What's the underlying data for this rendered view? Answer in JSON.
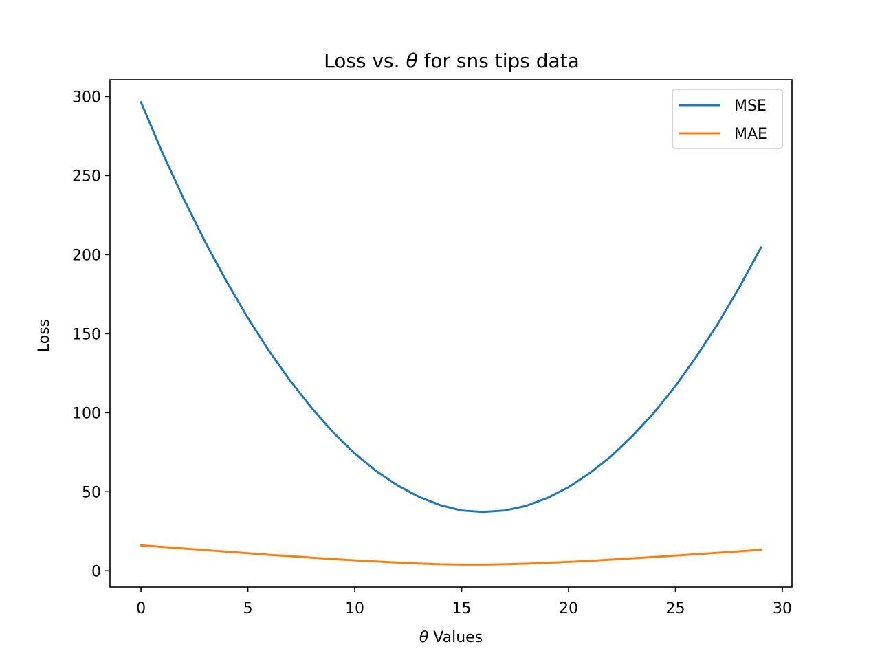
{
  "chart_data": {
    "type": "line",
    "title_main": "Loss vs. ",
    "title_symbol": "θ",
    "title_rest": " for sns tips data",
    "xlabel_symbol": "θ",
    "xlabel_rest": " Values",
    "ylabel": "Loss",
    "xlim": [
      -1.45,
      30.45
    ],
    "ylim": [
      -10.3,
      310.6
    ],
    "xticks": [
      0,
      5,
      10,
      15,
      20,
      25,
      30
    ],
    "yticks": [
      0,
      50,
      100,
      150,
      200,
      250,
      300
    ],
    "legend_position": "upper right",
    "x": [
      0,
      1,
      2,
      3,
      4,
      5,
      6,
      7,
      8,
      9,
      10,
      11,
      12,
      13,
      14,
      15,
      16,
      17,
      18,
      19,
      20,
      21,
      22,
      23,
      24,
      25,
      26,
      27,
      28,
      29
    ],
    "series": [
      {
        "name": "MSE",
        "color": "#1f77b4",
        "values": [
          296.4,
          264.5,
          235.2,
          208.1,
          183.2,
          160.0,
          138.9,
          119.9,
          102.7,
          87.4,
          74.2,
          63.1,
          54.0,
          46.8,
          41.5,
          38.1,
          37.2,
          38.1,
          41.0,
          46.0,
          52.9,
          61.9,
          72.5,
          85.5,
          100.0,
          116.9,
          136.0,
          156.6,
          179.6,
          204.5
        ]
      },
      {
        "name": "MAE",
        "color": "#ff7f0e",
        "values": [
          16.1,
          15.1,
          14.1,
          13.1,
          12.1,
          11.1,
          10.1,
          9.2,
          8.3,
          7.4,
          6.6,
          5.9,
          5.2,
          4.6,
          4.1,
          3.9,
          3.9,
          4.1,
          4.5,
          5.0,
          5.6,
          6.3,
          7.1,
          7.9,
          8.7,
          9.6,
          10.5,
          11.4,
          12.3,
          13.3
        ]
      }
    ]
  }
}
